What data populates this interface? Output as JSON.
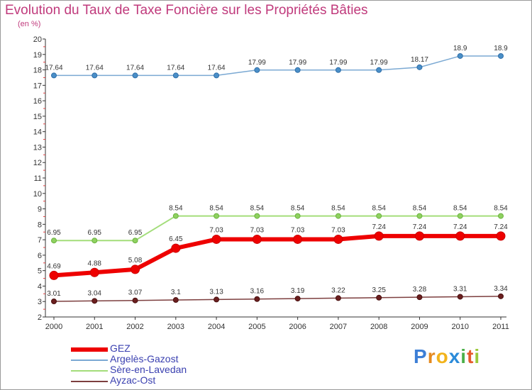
{
  "chart_data": {
    "type": "line",
    "title": "Evolution du Taux de Taxe Foncière sur les Propriétés Bâties",
    "ylabel": "(en %)",
    "xlabel": "",
    "x": [
      "2000",
      "2001",
      "2002",
      "2003",
      "2004",
      "2005",
      "2006",
      "2007",
      "2008",
      "2009",
      "2010",
      "2011"
    ],
    "yticks": [
      "2",
      "3",
      "4",
      "5",
      "6",
      "7",
      "8",
      "9",
      "10",
      "11",
      "12",
      "13",
      "14",
      "15",
      "16",
      "17",
      "18",
      "19",
      "20"
    ],
    "ylim": [
      2,
      20
    ],
    "grid": false,
    "series": [
      {
        "name": "GEZ",
        "color": "#ee0000",
        "values": [
          4.69,
          4.88,
          5.08,
          6.45,
          7.03,
          7.03,
          7.03,
          7.03,
          7.24,
          7.24,
          7.24,
          7.24
        ],
        "labels": [
          "4.69",
          "4.88",
          "5.08",
          "6.45",
          "7.03",
          "7.03",
          "7.03",
          "7.03",
          "7.24",
          "7.24",
          "7.24",
          "7.24"
        ]
      },
      {
        "name": "Argelès-Gazost",
        "color": "#7ba9d3",
        "values": [
          17.64,
          17.64,
          17.64,
          17.64,
          17.64,
          17.99,
          17.99,
          17.99,
          17.99,
          18.17,
          18.9,
          18.9
        ],
        "labels": [
          "17.64",
          "17.64",
          "17.64",
          "17.64",
          "17.64",
          "17.99",
          "17.99",
          "17.99",
          "17.99",
          "18.17",
          "18.9",
          "18.9"
        ]
      },
      {
        "name": "Sère-en-Lavedan",
        "color": "#a3dd7a",
        "values": [
          6.95,
          6.95,
          6.95,
          8.54,
          8.54,
          8.54,
          8.54,
          8.54,
          8.54,
          8.54,
          8.54,
          8.54
        ],
        "labels": [
          "6.95",
          "6.95",
          "6.95",
          "8.54",
          "8.54",
          "8.54",
          "8.54",
          "8.54",
          "8.54",
          "8.54",
          "8.54",
          "8.54"
        ]
      },
      {
        "name": "Ayzac-Ost",
        "color": "#7d3f3f",
        "values": [
          3.01,
          3.04,
          3.07,
          3.1,
          3.13,
          3.16,
          3.19,
          3.22,
          3.25,
          3.28,
          3.31,
          3.34
        ],
        "labels": [
          "3.01",
          "3.04",
          "3.07",
          "3.1",
          "3.13",
          "3.16",
          "3.19",
          "3.22",
          "3.25",
          "3.28",
          "3.31",
          "3.34"
        ]
      }
    ],
    "legend": "bottom-left"
  },
  "brand": {
    "letters": [
      "P",
      "r",
      "o",
      "x",
      "i",
      "t",
      "i"
    ],
    "colors": [
      "#3d7fd6",
      "#e58a1f",
      "#f2b31b",
      "#2b8bd9",
      "#4cb04a",
      "#e65a2a",
      "#9bc93a"
    ]
  }
}
